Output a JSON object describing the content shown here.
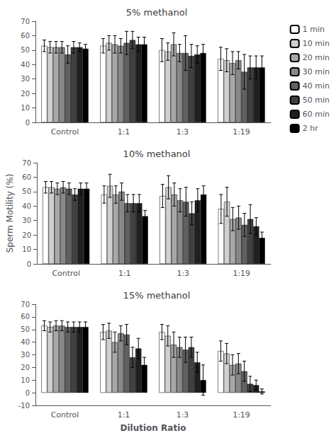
{
  "chart_data": [
    {
      "type": "bar",
      "title": "5% methanol",
      "categories": [
        "Control",
        "1:1",
        "1:3",
        "1:19"
      ],
      "legend": "right",
      "grid": false,
      "ylim": [
        0,
        70
      ],
      "yticks": [
        0,
        10,
        20,
        30,
        40,
        50,
        60,
        70
      ],
      "series": [
        {
          "name": "1 min",
          "color": "#ffffff",
          "values": [
            53,
            53,
            50,
            44
          ],
          "errors": [
            4,
            5,
            8,
            8
          ]
        },
        {
          "name": "10 min",
          "color": "#d0d0d0",
          "values": [
            52,
            55,
            49,
            43
          ],
          "errors": [
            4,
            5,
            6,
            8
          ]
        },
        {
          "name": "20 min",
          "color": "#a8a8a8",
          "values": [
            52,
            54,
            54,
            41
          ],
          "errors": [
            4,
            6,
            8,
            8
          ]
        },
        {
          "name": "30 min",
          "color": "#888888",
          "values": [
            52,
            53,
            48,
            43
          ],
          "errors": [
            4,
            5,
            6,
            6
          ]
        },
        {
          "name": "40 min",
          "color": "#606060",
          "values": [
            47,
            55,
            48,
            35
          ],
          "errors": [
            6,
            8,
            12,
            12
          ]
        },
        {
          "name": "50 min",
          "color": "#404040",
          "values": [
            52,
            57,
            46,
            38
          ],
          "errors": [
            4,
            6,
            8,
            8
          ]
        },
        {
          "name": "60 min",
          "color": "#202020",
          "values": [
            52,
            54,
            47,
            38
          ],
          "errors": [
            3,
            5,
            6,
            8
          ]
        },
        {
          "name": "2 hr",
          "color": "#000000",
          "values": [
            51,
            54,
            48,
            38
          ],
          "errors": [
            3,
            5,
            6,
            8
          ]
        }
      ]
    },
    {
      "type": "bar",
      "title": "10% methanol",
      "categories": [
        "Control",
        "1:1",
        "1:3",
        "1:19"
      ],
      "ylabel": "Sperm Motility (%)",
      "grid": false,
      "ylim": [
        0,
        70
      ],
      "yticks": [
        0,
        10,
        20,
        30,
        40,
        50,
        60,
        70
      ],
      "series": [
        {
          "name": "1 min",
          "color": "#ffffff",
          "values": [
            53,
            48,
            47,
            38
          ],
          "errors": [
            4,
            6,
            8,
            10
          ]
        },
        {
          "name": "10 min",
          "color": "#d0d0d0",
          "values": [
            53,
            54,
            53,
            43
          ],
          "errors": [
            4,
            8,
            8,
            10
          ]
        },
        {
          "name": "20 min",
          "color": "#a8a8a8",
          "values": [
            52,
            48,
            48,
            31
          ],
          "errors": [
            4,
            6,
            8,
            8
          ]
        },
        {
          "name": "30 min",
          "color": "#888888",
          "values": [
            53,
            50,
            44,
            32
          ],
          "errors": [
            4,
            6,
            8,
            8
          ]
        },
        {
          "name": "40 min",
          "color": "#606060",
          "values": [
            52,
            42,
            43,
            27
          ],
          "errors": [
            4,
            6,
            10,
            8
          ]
        },
        {
          "name": "50 min",
          "color": "#404040",
          "values": [
            48,
            42,
            35,
            31
          ],
          "errors": [
            4,
            6,
            8,
            10
          ]
        },
        {
          "name": "60 min",
          "color": "#202020",
          "values": [
            52,
            42,
            44,
            26
          ],
          "errors": [
            4,
            6,
            8,
            6
          ]
        },
        {
          "name": "2 hr",
          "color": "#000000",
          "values": [
            52,
            33,
            48,
            18
          ],
          "errors": [
            4,
            4,
            6,
            4
          ]
        }
      ]
    },
    {
      "type": "bar",
      "title": "15% methanol",
      "categories": [
        "Control",
        "1:1",
        "1:3",
        "1:19"
      ],
      "xlabel": "Dilution Ratio",
      "grid": false,
      "ylim": [
        -10,
        70
      ],
      "yticks": [
        -10,
        0,
        10,
        20,
        30,
        40,
        50,
        60,
        70
      ],
      "series": [
        {
          "name": "1 min",
          "color": "#ffffff",
          "values": [
            53,
            48,
            48,
            33
          ],
          "errors": [
            4,
            6,
            6,
            8
          ]
        },
        {
          "name": "10 min",
          "color": "#d0d0d0",
          "values": [
            52,
            49,
            45,
            31
          ],
          "errors": [
            4,
            6,
            8,
            8
          ]
        },
        {
          "name": "20 min",
          "color": "#a8a8a8",
          "values": [
            53,
            40,
            38,
            22
          ],
          "errors": [
            4,
            8,
            10,
            8
          ]
        },
        {
          "name": "30 min",
          "color": "#888888",
          "values": [
            53,
            47,
            36,
            23
          ],
          "errors": [
            4,
            6,
            8,
            8
          ]
        },
        {
          "name": "40 min",
          "color": "#606060",
          "values": [
            52,
            46,
            34,
            17
          ],
          "errors": [
            4,
            8,
            10,
            8
          ]
        },
        {
          "name": "50 min",
          "color": "#404040",
          "values": [
            52,
            28,
            36,
            7
          ],
          "errors": [
            4,
            8,
            8,
            6
          ]
        },
        {
          "name": "60 min",
          "color": "#202020",
          "values": [
            52,
            35,
            24,
            6
          ],
          "errors": [
            4,
            8,
            8,
            4
          ]
        },
        {
          "name": "2 hr",
          "color": "#000000",
          "values": [
            52,
            22,
            10,
            1
          ],
          "errors": [
            4,
            6,
            12,
            2
          ]
        }
      ]
    }
  ]
}
